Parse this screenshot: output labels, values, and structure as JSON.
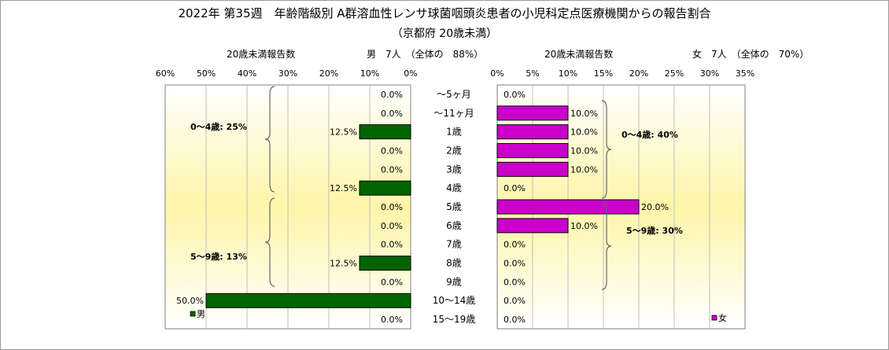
{
  "title": "2022年 第35週　年齢階級別 A群溶血性レンサ球菌咽頭炎患者の小児科定点医療機関からの報告割合",
  "subtitle": "（京都府 20歳未満）",
  "left_header": {
    "count_label": "20歳未満報告数",
    "summary": "男　7人　（全体の　88%）"
  },
  "right_header": {
    "count_label": "20歳未満報告数",
    "summary": "女　7人　（全体の　70%）"
  },
  "colors": {
    "male": "#006400",
    "female": "#cc00cc",
    "plot_bg": "#fdf5a8"
  },
  "chart_data": {
    "type": "bar",
    "categories": [
      "～5ヶ月",
      "～11ヶ月",
      "1歳",
      "2歳",
      "3歳",
      "4歳",
      "5歳",
      "6歳",
      "7歳",
      "8歳",
      "9歳",
      "10～14歳",
      "15～19歳"
    ],
    "series": [
      {
        "name": "男",
        "unit": "%",
        "xlim": [
          0,
          60
        ],
        "ticks": [
          "60%",
          "50%",
          "40%",
          "30%",
          "20%",
          "10%",
          "0%"
        ],
        "values": [
          0,
          0,
          12.5,
          0,
          0,
          12.5,
          0,
          0,
          0,
          12.5,
          0,
          50.0,
          0
        ],
        "labels": [
          "0.0%",
          "0.0%",
          "12.5%",
          "0.0%",
          "0.0%",
          "12.5%",
          "0.0%",
          "0.0%",
          "0.0%",
          "12.5%",
          "0.0%",
          "50.0%",
          "0.0%"
        ]
      },
      {
        "name": "女",
        "unit": "%",
        "xlim": [
          0,
          35
        ],
        "ticks": [
          "0%",
          "5%",
          "10%",
          "15%",
          "20%",
          "25%",
          "30%",
          "35%"
        ],
        "values": [
          0,
          10.0,
          10.0,
          10.0,
          10.0,
          0,
          20.0,
          10.0,
          0,
          0,
          0,
          0,
          0
        ],
        "labels": [
          "0.0%",
          "10.0%",
          "10.0%",
          "10.0%",
          "10.0%",
          "0.0%",
          "20.0%",
          "10.0%",
          "0.0%",
          "0.0%",
          "0.0%",
          "0.0%",
          "0.0%"
        ]
      }
    ],
    "annotations": {
      "male": [
        "0～4歳: 25%",
        "5～9歳: 13%"
      ],
      "female": [
        "0～4歳: 40%",
        "5～9歳: 30%"
      ]
    },
    "legend": {
      "male": "男",
      "female": "女"
    }
  }
}
